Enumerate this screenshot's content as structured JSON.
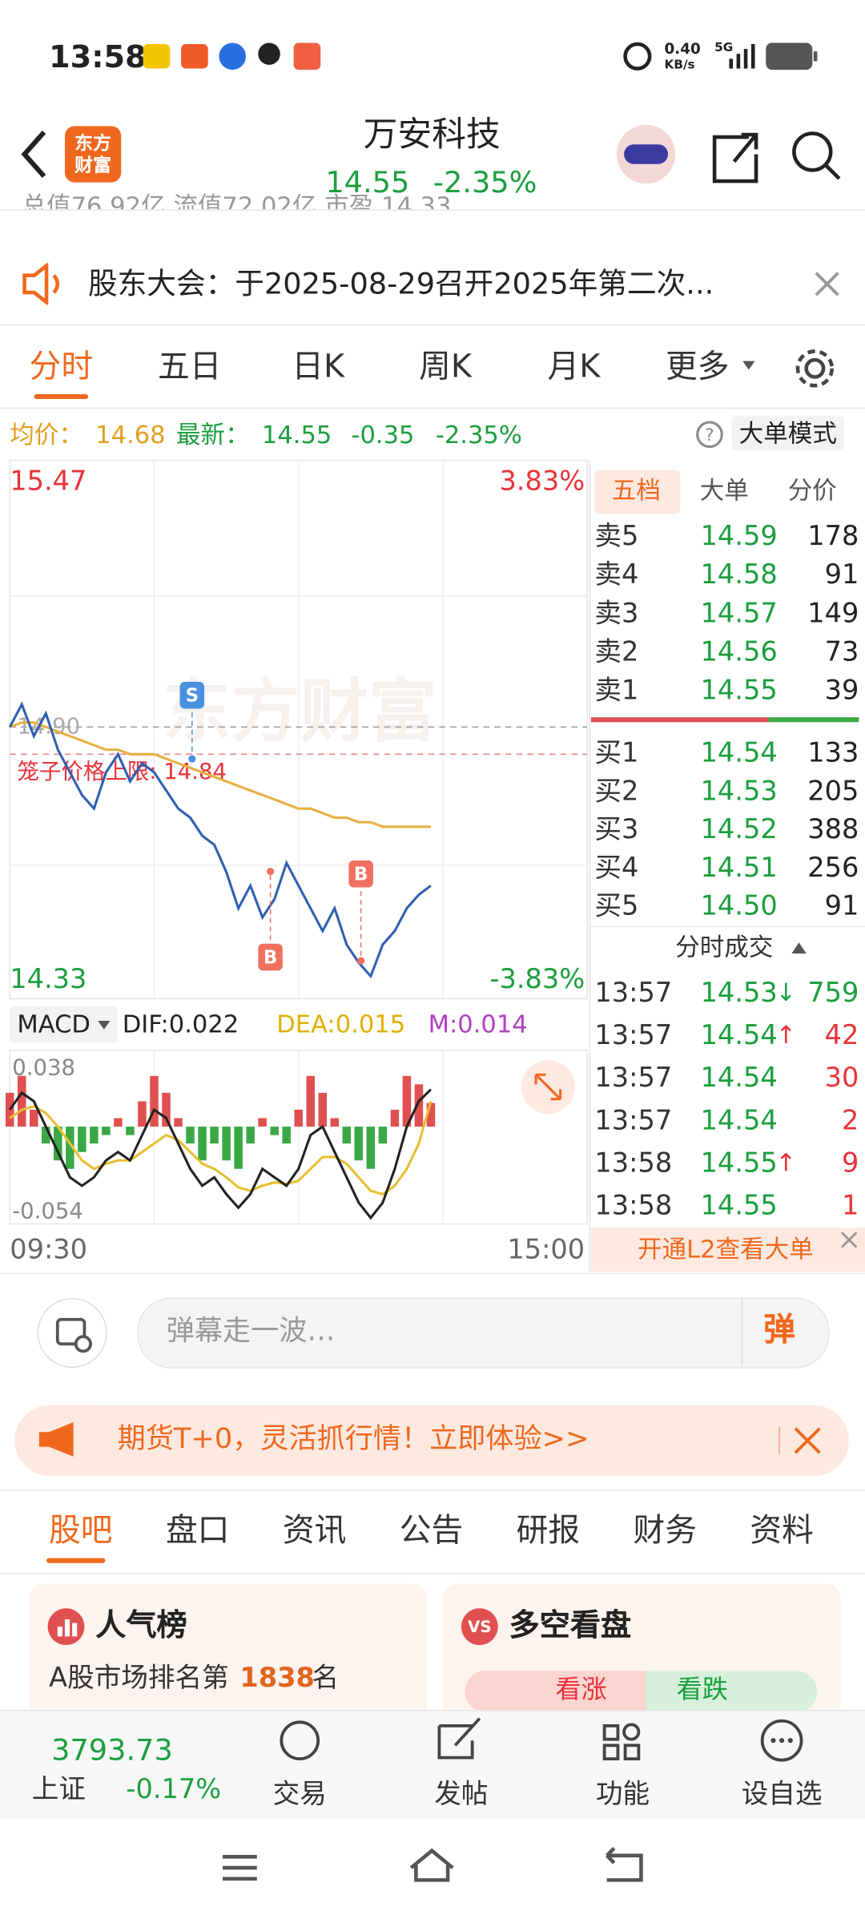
{
  "status_bar": {
    "time": "13:58",
    "net_speed": "0.40",
    "net_unit": "KB/s",
    "signal": "5G"
  },
  "header": {
    "logo": "东方财富",
    "title": "万安科技",
    "price": "14.55",
    "change": "-2.35%"
  },
  "strip": "总值76.92亿 流值72.02亿 市盈 14.33",
  "notice": "股东大会：于2025-08-29召开2025年第二次...",
  "tabs": [
    "分时",
    "五日",
    "日K",
    "周K",
    "月K",
    "更多"
  ],
  "quote_line": {
    "avg_label": "均价：",
    "avg": "14.68",
    "latest_label": "最新：",
    "latest": "14.55",
    "change": "-0.35",
    "pct": "-2.35%",
    "mode": "大单模式"
  },
  "chart": {
    "y_top": "15.47",
    "y_bottom": "14.33",
    "pct_top": "3.83%",
    "pct_bottom": "-3.83%",
    "ylim": [
      14.33,
      15.47
    ],
    "prev_close": {
      "value": 14.9,
      "label": "14.90"
    },
    "cage_limit": {
      "value": 14.84,
      "label": "笼子价格上限: 14.84"
    },
    "markers": [
      "S",
      "B",
      "B"
    ],
    "price": [
      14.9,
      14.95,
      14.88,
      14.93,
      14.85,
      14.8,
      14.75,
      14.72,
      14.8,
      14.84,
      14.78,
      14.82,
      14.8,
      14.76,
      14.72,
      14.7,
      14.66,
      14.64,
      14.58,
      14.5,
      14.55,
      14.48,
      14.52,
      14.6,
      14.55,
      14.5,
      14.45,
      14.5,
      14.42,
      14.38,
      14.35,
      14.42,
      14.45,
      14.5,
      14.53,
      14.55
    ],
    "avg": [
      14.9,
      14.91,
      14.91,
      14.9,
      14.89,
      14.88,
      14.87,
      14.86,
      14.85,
      14.85,
      14.84,
      14.84,
      14.84,
      14.83,
      14.82,
      14.81,
      14.8,
      14.79,
      14.78,
      14.77,
      14.76,
      14.75,
      14.74,
      14.73,
      14.72,
      14.72,
      14.71,
      14.7,
      14.7,
      14.69,
      14.69,
      14.68,
      14.68,
      14.68,
      14.68,
      14.68
    ],
    "x_start": "09:30",
    "x_end": "15:00",
    "price_color": "#2f5fb0",
    "avg_color": "#e8b040"
  },
  "macd": {
    "label": "MACD",
    "dif": "DIF:0.022",
    "dea": "DEA:0.015",
    "m": "M:0.014",
    "top": "0.038",
    "bottom": "-0.054",
    "ylim": [
      -0.054,
      0.038
    ],
    "hist": [
      0.02,
      0.03,
      0.01,
      -0.01,
      -0.02,
      -0.025,
      -0.015,
      -0.01,
      -0.005,
      0.005,
      -0.005,
      0.015,
      0.03,
      0.02,
      0.005,
      -0.01,
      -0.02,
      -0.01,
      -0.02,
      -0.025,
      -0.01,
      0.005,
      -0.005,
      -0.01,
      0.01,
      0.03,
      0.02,
      0.005,
      -0.01,
      -0.02,
      -0.025,
      -0.01,
      0.01,
      0.03,
      0.025,
      0.014
    ],
    "dif_values": [
      0.01,
      0.02,
      0.015,
      0,
      -0.015,
      -0.03,
      -0.035,
      -0.03,
      -0.02,
      -0.015,
      -0.02,
      -0.005,
      0.01,
      0.005,
      -0.01,
      -0.025,
      -0.035,
      -0.03,
      -0.04,
      -0.048,
      -0.04,
      -0.025,
      -0.03,
      -0.035,
      -0.025,
      -0.005,
      0,
      -0.015,
      -0.03,
      -0.045,
      -0.054,
      -0.045,
      -0.025,
      0,
      0.015,
      0.022
    ],
    "dea_values": [
      0.005,
      0.01,
      0.012,
      0.008,
      0,
      -0.01,
      -0.02,
      -0.025,
      -0.022,
      -0.02,
      -0.02,
      -0.015,
      -0.01,
      -0.005,
      -0.008,
      -0.015,
      -0.022,
      -0.025,
      -0.03,
      -0.036,
      -0.038,
      -0.035,
      -0.033,
      -0.034,
      -0.032,
      -0.025,
      -0.018,
      -0.018,
      -0.022,
      -0.03,
      -0.038,
      -0.04,
      -0.035,
      -0.025,
      -0.01,
      0.015
    ]
  },
  "order_book": {
    "tabs": [
      "五档",
      "大单",
      "分价"
    ],
    "asks": [
      {
        "label": "卖5",
        "price": "14.59",
        "vol": "178"
      },
      {
        "label": "卖4",
        "price": "14.58",
        "vol": "91"
      },
      {
        "label": "卖3",
        "price": "14.57",
        "vol": "149"
      },
      {
        "label": "卖2",
        "price": "14.56",
        "vol": "73"
      },
      {
        "label": "卖1",
        "price": "14.55",
        "vol": "39"
      }
    ],
    "bids": [
      {
        "label": "买1",
        "price": "14.54",
        "vol": "133"
      },
      {
        "label": "买2",
        "price": "14.53",
        "vol": "205"
      },
      {
        "label": "买3",
        "price": "14.52",
        "vol": "388"
      },
      {
        "label": "买4",
        "price": "14.51",
        "vol": "256"
      },
      {
        "label": "买5",
        "price": "14.50",
        "vol": "91"
      }
    ]
  },
  "trades": {
    "title": "分时成交",
    "rows": [
      {
        "time": "13:57",
        "price": "14.53",
        "arrow": "↓",
        "vol": "759",
        "color": "#1b9e3e"
      },
      {
        "time": "13:57",
        "price": "14.54",
        "arrow": "↑",
        "vol": "42",
        "color": "#e8333a"
      },
      {
        "time": "13:57",
        "price": "14.54",
        "vol": "30",
        "color": "#e8333a"
      },
      {
        "time": "13:57",
        "price": "14.54",
        "vol": "2",
        "color": "#e8333a"
      },
      {
        "time": "13:58",
        "price": "14.55",
        "arrow": "↑",
        "vol": "9",
        "color": "#e8333a"
      },
      {
        "time": "13:58",
        "price": "14.55",
        "vol": "1",
        "color": "#e8333a"
      }
    ],
    "l2": "开通L2查看大单"
  },
  "comment": {
    "placeholder": "弹幕走一波…",
    "button": "弹"
  },
  "ad": "期货T+0，灵活抓行情！立即体验>>",
  "section_tabs": [
    "股吧",
    "盘口",
    "资讯",
    "公告",
    "研报",
    "财务",
    "资料"
  ],
  "cards": {
    "popularity": {
      "title": "人气榜",
      "prefix": "A股市场排名第",
      "rank": "1838",
      "suffix": "名"
    },
    "sentiment": {
      "title": "多空看盘",
      "up": "看涨",
      "down": "看跌"
    }
  },
  "bottom_nav": {
    "index_value": "3793.73",
    "index_name": "上证",
    "index_change": "-0.17%",
    "items": [
      "交易",
      "发帖",
      "功能",
      "设自选"
    ]
  }
}
